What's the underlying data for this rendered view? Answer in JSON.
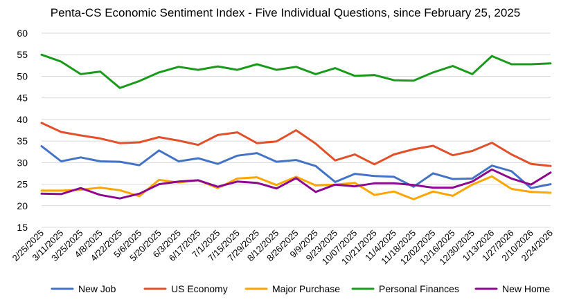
{
  "chart_data": {
    "type": "line",
    "title": "Penta-CS Economic Sentiment Index - Five Individual Questions, since February 25, 2025",
    "xlabel": "",
    "ylabel": "",
    "ylim": [
      15,
      60
    ],
    "yticks": [
      15,
      20,
      25,
      30,
      35,
      40,
      45,
      50,
      55,
      60
    ],
    "grid": true,
    "legend_position": "bottom",
    "x": [
      "2/25/2025",
      "3/11/2025",
      "3/25/2025",
      "4/8/2025",
      "4/22/2025",
      "5/6/2025",
      "5/20/2025",
      "6/3/2025",
      "6/17/2025",
      "7/1/2025",
      "7/15/2025",
      "7/29/2025",
      "8/12/2025",
      "8/26/2025",
      "9/9/2025",
      "9/23/2025",
      "10/07/2025",
      "10/21/2025",
      "11/4/2025",
      "11/18/2025",
      "12/02/2025",
      "12/16/2025",
      "12/30/2025",
      "1/13/2026",
      "1/27/2026",
      "2/10/2026",
      "2/24/2026"
    ],
    "series": [
      {
        "name": "New Job",
        "color": "#4472C4",
        "values": [
          33.8,
          30.3,
          31.2,
          30.3,
          30.2,
          29.4,
          32.8,
          30.3,
          31.0,
          29.7,
          31.6,
          32.2,
          30.2,
          30.6,
          29.2,
          25.5,
          27.4,
          26.9,
          26.7,
          24.4,
          27.5,
          26.2,
          26.3,
          29.3,
          28.0,
          24.1,
          25.0
        ]
      },
      {
        "name": "US Economy",
        "color": "#E0502A",
        "values": [
          39.2,
          37.1,
          36.3,
          35.6,
          34.5,
          34.7,
          35.9,
          35.1,
          34.1,
          36.4,
          37.0,
          34.5,
          34.9,
          37.5,
          34.4,
          30.5,
          31.9,
          29.6,
          31.9,
          33.1,
          33.9,
          31.7,
          32.7,
          34.6,
          31.9,
          29.7,
          29.2
        ]
      },
      {
        "name": "Major Purchase",
        "color": "#FFA500",
        "values": [
          23.5,
          23.5,
          23.7,
          24.2,
          23.6,
          22.2,
          26.0,
          25.4,
          25.9,
          24.1,
          26.3,
          26.6,
          24.8,
          26.7,
          24.7,
          24.9,
          25.3,
          22.5,
          23.3,
          21.5,
          23.3,
          22.3,
          24.9,
          26.8,
          23.9,
          23.2,
          23.0
        ]
      },
      {
        "name": "Personal Finances",
        "color": "#1A9A1A",
        "values": [
          55.0,
          53.4,
          50.5,
          51.1,
          47.3,
          48.9,
          50.9,
          52.2,
          51.5,
          52.3,
          51.5,
          52.8,
          51.5,
          52.2,
          50.5,
          51.9,
          50.1,
          50.3,
          49.1,
          49.0,
          50.9,
          52.4,
          50.5,
          54.7,
          52.8,
          52.8,
          53.0
        ]
      },
      {
        "name": "New Home",
        "color": "#8B0A8E",
        "values": [
          22.8,
          22.7,
          24.1,
          22.5,
          21.7,
          22.8,
          25.0,
          25.6,
          25.9,
          24.4,
          25.6,
          25.3,
          24.0,
          26.4,
          23.2,
          24.9,
          24.5,
          25.2,
          25.2,
          24.8,
          24.2,
          24.2,
          25.6,
          28.4,
          26.3,
          24.9,
          27.7
        ]
      }
    ]
  }
}
